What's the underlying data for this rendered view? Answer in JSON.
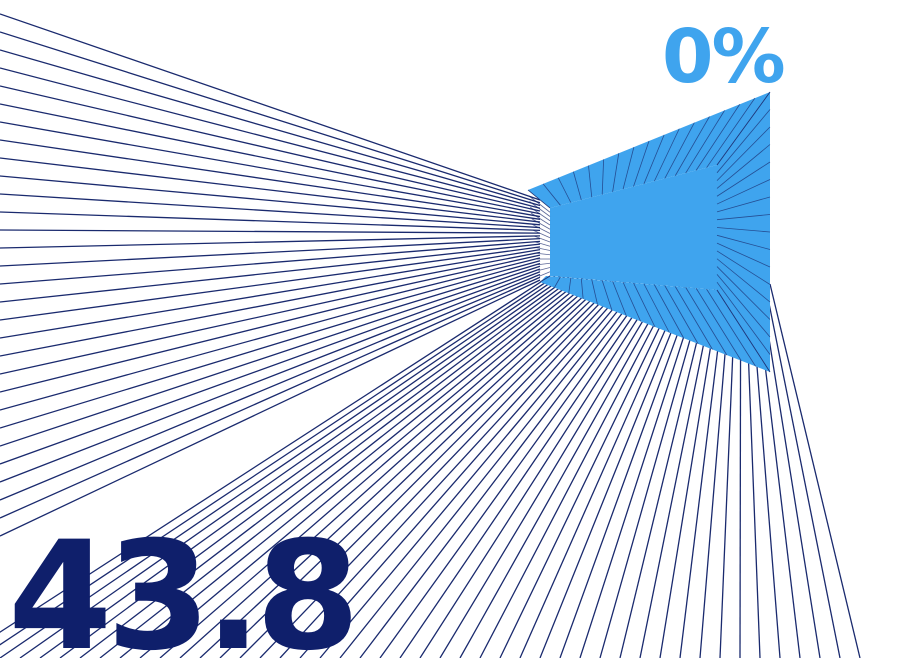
{
  "graphic": {
    "main_value": "43.8",
    "percent_label": "0%"
  },
  "colors": {
    "navy": "#0f1f6b",
    "line": "#1a2a6e",
    "accent_blue": "#3fa4ee",
    "background": "#ffffff"
  }
}
